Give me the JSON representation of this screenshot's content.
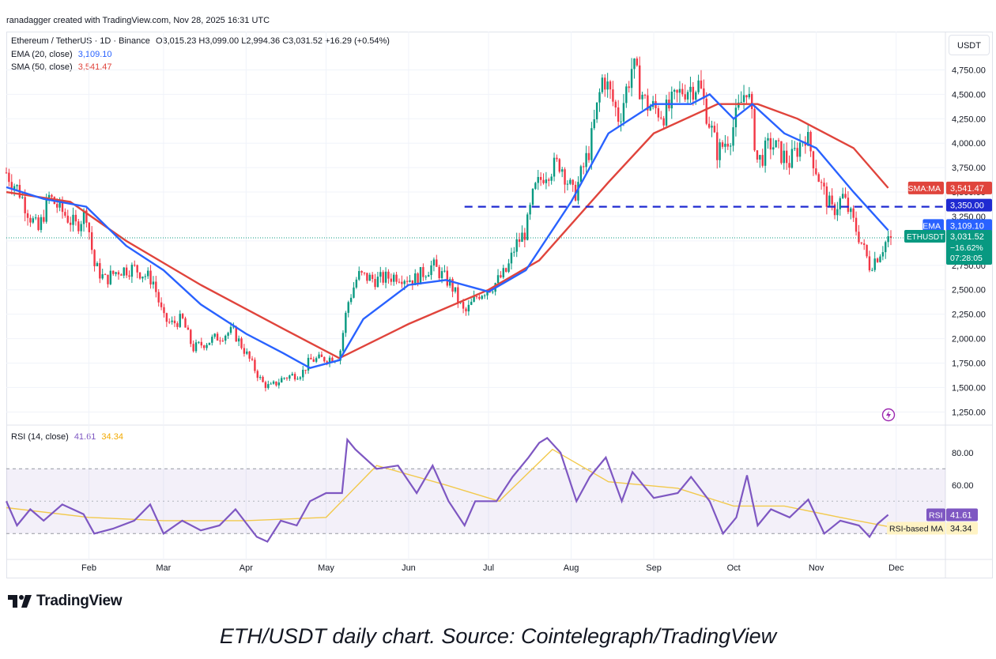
{
  "attribution": "ranadagger created with TradingView.com, Nov 28, 2025 16:31 UTC",
  "legend": {
    "symbol": "Ethereum / TetherUS · 1D · Binance",
    "ohlc_text": "O3,015.23 H3,099.00 L2,994.36 C3,031.52 +16.29 (+0.54%)",
    "ema_label": "EMA (20, close)",
    "ema_value": "3,109.10",
    "sma_label": "SMA (50, close)",
    "sma_value": "3,541.47",
    "rsi_label": "RSI (14, close)",
    "rsi_value": "41.61",
    "rsi_ma_value": "34.34"
  },
  "currency": "USDT",
  "branding": "TradingView",
  "caption": "ETH/USDT daily chart. Source: Cointelegraph/TradingView",
  "colors": {
    "up": "#089981",
    "down": "#f23645",
    "ema": "#2962ff",
    "sma": "#e0443c",
    "rsi": "#7e57c2",
    "rsi_ma": "#f2c94c",
    "resistance": "#1f2ad1"
  },
  "icons": [
    "tradingview-logo-icon",
    "flash-icon"
  ],
  "chart_data": [
    {
      "type": "candlestick",
      "x_axis": [
        "Feb",
        "Mar",
        "Apr",
        "May",
        "Jun",
        "Jul",
        "Aug",
        "Sep",
        "Oct",
        "Nov",
        "Dec"
      ],
      "y_ticks": [
        "1,250.00",
        "1,500.00",
        "1,750.00",
        "2,000.00",
        "2,250.00",
        "2,500.00",
        "2,750.00",
        "3,000.00",
        "3,250.00",
        "3,500.00",
        "3,750.00",
        "4,000.00",
        "4,250.00",
        "4,500.00",
        "4,750.00"
      ],
      "ylim": [
        1180,
        4980
      ],
      "close_path": [
        [
          "2025-01-01",
          3700
        ],
        [
          "2025-01-06",
          3500
        ],
        [
          "2025-01-10",
          3250
        ],
        [
          "2025-01-13",
          3100
        ],
        [
          "2025-01-17",
          3450
        ],
        [
          "2025-01-22",
          3300
        ],
        [
          "2025-01-27",
          3150
        ],
        [
          "2025-01-31",
          3300
        ],
        [
          "2025-02-03",
          2750
        ],
        [
          "2025-02-07",
          2600
        ],
        [
          "2025-02-12",
          2700
        ],
        [
          "2025-02-18",
          2720
        ],
        [
          "2025-02-25",
          2600
        ],
        [
          "2025-03-01",
          2200
        ],
        [
          "2025-03-04",
          2150
        ],
        [
          "2025-03-08",
          2200
        ],
        [
          "2025-03-12",
          1900
        ],
        [
          "2025-03-20",
          2000
        ],
        [
          "2025-03-27",
          2080
        ],
        [
          "2025-04-01",
          1850
        ],
        [
          "2025-04-07",
          1550
        ],
        [
          "2025-04-10",
          1500
        ],
        [
          "2025-04-15",
          1600
        ],
        [
          "2025-04-22",
          1650
        ],
        [
          "2025-04-25",
          1780
        ],
        [
          "2025-05-02",
          1800
        ],
        [
          "2025-05-06",
          1820
        ],
        [
          "2025-05-09",
          2350
        ],
        [
          "2025-05-13",
          2650
        ],
        [
          "2025-05-20",
          2600
        ],
        [
          "2025-05-28",
          2650
        ],
        [
          "2025-06-03",
          2600
        ],
        [
          "2025-06-10",
          2750
        ],
        [
          "2025-06-17",
          2550
        ],
        [
          "2025-06-22",
          2250
        ],
        [
          "2025-06-27",
          2450
        ],
        [
          "2025-07-03",
          2550
        ],
        [
          "2025-07-08",
          2700
        ],
        [
          "2025-07-11",
          2950
        ],
        [
          "2025-07-15",
          3100
        ],
        [
          "2025-07-18",
          3500
        ],
        [
          "2025-07-22",
          3700
        ],
        [
          "2025-07-28",
          3800
        ],
        [
          "2025-08-02",
          3450
        ],
        [
          "2025-08-08",
          3950
        ],
        [
          "2025-08-13",
          4700
        ],
        [
          "2025-08-19",
          4250
        ],
        [
          "2025-08-24",
          4800
        ],
        [
          "2025-08-29",
          4400
        ],
        [
          "2025-09-05",
          4300
        ],
        [
          "2025-09-12",
          4550
        ],
        [
          "2025-09-18",
          4600
        ],
        [
          "2025-09-25",
          3900
        ],
        [
          "2025-09-30",
          4100
        ],
        [
          "2025-10-06",
          4600
        ],
        [
          "2025-10-10",
          3800
        ],
        [
          "2025-10-15",
          4000
        ],
        [
          "2025-10-22",
          3800
        ],
        [
          "2025-10-28",
          4100
        ],
        [
          "2025-11-03",
          3550
        ],
        [
          "2025-11-07",
          3300
        ],
        [
          "2025-11-11",
          3450
        ],
        [
          "2025-11-17",
          3050
        ],
        [
          "2025-11-21",
          2750
        ],
        [
          "2025-11-24",
          2850
        ],
        [
          "2025-11-28",
          3031.52
        ]
      ],
      "series": [
        {
          "name": "EMA (20, close)",
          "last": 3109.1
        },
        {
          "name": "SMA (50, close)",
          "last": 3541.47
        }
      ],
      "ema_path": [
        [
          "2025-01-01",
          3550
        ],
        [
          "2025-01-15",
          3430
        ],
        [
          "2025-01-31",
          3350
        ],
        [
          "2025-02-15",
          2950
        ],
        [
          "2025-03-01",
          2700
        ],
        [
          "2025-03-15",
          2350
        ],
        [
          "2025-04-01",
          2050
        ],
        [
          "2025-04-15",
          1850
        ],
        [
          "2025-04-25",
          1700
        ],
        [
          "2025-05-06",
          1780
        ],
        [
          "2025-05-15",
          2200
        ],
        [
          "2025-06-01",
          2550
        ],
        [
          "2025-06-15",
          2600
        ],
        [
          "2025-07-01",
          2480
        ],
        [
          "2025-07-15",
          2700
        ],
        [
          "2025-08-01",
          3400
        ],
        [
          "2025-08-15",
          4100
        ],
        [
          "2025-09-01",
          4400
        ],
        [
          "2025-09-15",
          4400
        ],
        [
          "2025-09-22",
          4500
        ],
        [
          "2025-10-01",
          4250
        ],
        [
          "2025-10-08",
          4400
        ],
        [
          "2025-10-20",
          4100
        ],
        [
          "2025-11-01",
          3950
        ],
        [
          "2025-11-15",
          3500
        ],
        [
          "2025-11-28",
          3109.1
        ]
      ],
      "sma_path": [
        [
          "2025-01-01",
          3500
        ],
        [
          "2025-01-25",
          3400
        ],
        [
          "2025-02-15",
          3000
        ],
        [
          "2025-03-15",
          2550
        ],
        [
          "2025-04-15",
          2100
        ],
        [
          "2025-05-06",
          1800
        ],
        [
          "2025-06-01",
          2150
        ],
        [
          "2025-07-01",
          2500
        ],
        [
          "2025-07-20",
          2800
        ],
        [
          "2025-08-15",
          3600
        ],
        [
          "2025-09-01",
          4100
        ],
        [
          "2025-09-25",
          4400
        ],
        [
          "2025-10-10",
          4400
        ],
        [
          "2025-10-25",
          4250
        ],
        [
          "2025-11-15",
          3950
        ],
        [
          "2025-11-28",
          3541.47
        ]
      ],
      "resistance_level": 3350,
      "price_labels": [
        {
          "label": "SMA:MA",
          "value": "3,541.47"
        },
        {
          "label": "",
          "value": "3,350.00"
        },
        {
          "label": "EMA",
          "value": "3,109.10"
        },
        {
          "label": "ETHUSDT",
          "value": "3,031.52",
          "change": "−16.62%",
          "countdown": "07:28:05"
        }
      ]
    },
    {
      "type": "line",
      "title": "RSI (14, close)",
      "y_ticks": [
        "60.00",
        "80.00"
      ],
      "ylim": [
        15,
        96
      ],
      "band": [
        30,
        70
      ],
      "rsi_path": [
        [
          "2025-01-01",
          50
        ],
        [
          "2025-01-05",
          35
        ],
        [
          "2025-01-10",
          45
        ],
        [
          "2025-01-15",
          38
        ],
        [
          "2025-01-22",
          48
        ],
        [
          "2025-01-30",
          42
        ],
        [
          "2025-02-03",
          30
        ],
        [
          "2025-02-10",
          33
        ],
        [
          "2025-02-18",
          38
        ],
        [
          "2025-02-24",
          48
        ],
        [
          "2025-03-01",
          30
        ],
        [
          "2025-03-08",
          38
        ],
        [
          "2025-03-15",
          32
        ],
        [
          "2025-03-22",
          35
        ],
        [
          "2025-03-28",
          45
        ],
        [
          "2025-04-05",
          28
        ],
        [
          "2025-04-09",
          25
        ],
        [
          "2025-04-14",
          38
        ],
        [
          "2025-04-20",
          35
        ],
        [
          "2025-04-25",
          50
        ],
        [
          "2025-05-01",
          55
        ],
        [
          "2025-05-07",
          55
        ],
        [
          "2025-05-09",
          88
        ],
        [
          "2025-05-12",
          82
        ],
        [
          "2025-05-20",
          70
        ],
        [
          "2025-05-28",
          72
        ],
        [
          "2025-06-04",
          55
        ],
        [
          "2025-06-10",
          72
        ],
        [
          "2025-06-16",
          50
        ],
        [
          "2025-06-22",
          35
        ],
        [
          "2025-06-26",
          50
        ],
        [
          "2025-07-04",
          50
        ],
        [
          "2025-07-10",
          65
        ],
        [
          "2025-07-16",
          77
        ],
        [
          "2025-07-20",
          86
        ],
        [
          "2025-07-23",
          89
        ],
        [
          "2025-07-28",
          80
        ],
        [
          "2025-08-03",
          50
        ],
        [
          "2025-08-08",
          65
        ],
        [
          "2025-08-14",
          77
        ],
        [
          "2025-08-20",
          50
        ],
        [
          "2025-08-24",
          68
        ],
        [
          "2025-09-01",
          52
        ],
        [
          "2025-09-10",
          55
        ],
        [
          "2025-09-15",
          65
        ],
        [
          "2025-09-22",
          50
        ],
        [
          "2025-09-27",
          30
        ],
        [
          "2025-10-02",
          40
        ],
        [
          "2025-10-06",
          66
        ],
        [
          "2025-10-10",
          35
        ],
        [
          "2025-10-15",
          45
        ],
        [
          "2025-10-22",
          40
        ],
        [
          "2025-10-29",
          51
        ],
        [
          "2025-11-04",
          30
        ],
        [
          "2025-11-10",
          38
        ],
        [
          "2025-11-17",
          35
        ],
        [
          "2025-11-21",
          28
        ],
        [
          "2025-11-24",
          36
        ],
        [
          "2025-11-28",
          41.61
        ]
      ],
      "rsi_ma_path": [
        [
          "2025-01-01",
          46
        ],
        [
          "2025-02-01",
          40
        ],
        [
          "2025-03-01",
          38
        ],
        [
          "2025-04-01",
          38
        ],
        [
          "2025-05-01",
          40
        ],
        [
          "2025-05-20",
          72
        ],
        [
          "2025-06-15",
          60
        ],
        [
          "2025-07-05",
          50
        ],
        [
          "2025-07-25",
          82
        ],
        [
          "2025-08-15",
          62
        ],
        [
          "2025-09-10",
          58
        ],
        [
          "2025-10-01",
          47
        ],
        [
          "2025-10-20",
          47
        ],
        [
          "2025-11-10",
          40
        ],
        [
          "2025-11-28",
          34.34
        ]
      ],
      "series": [
        {
          "name": "RSI",
          "last": 41.61
        },
        {
          "name": "RSI-based MA",
          "last": 34.34
        }
      ],
      "price_labels": [
        {
          "label": "RSI",
          "value": "41.61"
        },
        {
          "label": "RSI-based MA",
          "value": "34.34"
        }
      ]
    }
  ]
}
